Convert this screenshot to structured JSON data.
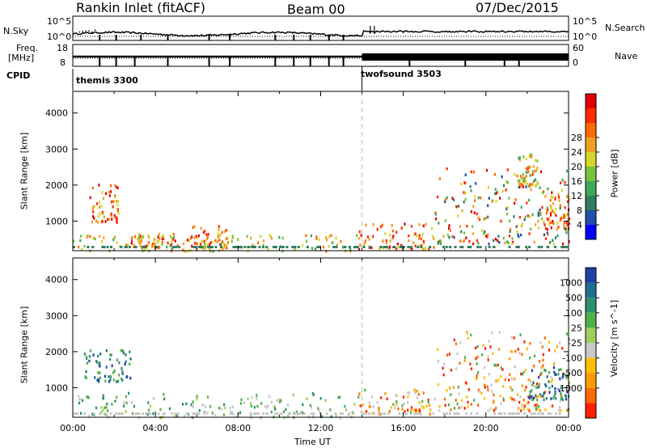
{
  "header": {
    "station": "Rankin Inlet (fitACF)",
    "beam": "Beam 00",
    "date": "07/Dec/2015"
  },
  "top_panels": {
    "nsky_label": "N.Sky",
    "nsky_ticks": [
      "10^5",
      "10^0"
    ],
    "nsearch_label": "N.Search",
    "nsearch_ticks": [
      "10^5",
      "10^0"
    ],
    "freq_label": "Freq.",
    "freq_unit": "[MHz]",
    "freq_ticks": [
      "18",
      "8"
    ],
    "nave_label": "Nave",
    "nave_ticks": [
      "60",
      "0"
    ],
    "cpid_label": "CPID",
    "cpid_entries": [
      {
        "name": "themis 3300",
        "start": "00:00"
      },
      {
        "name": "twofsound 3503",
        "start": "14:00"
      }
    ]
  },
  "chart_data": [
    {
      "type": "heatmap",
      "name": "power",
      "ylabel": "Slant Range [km]",
      "xlabel": "",
      "ylim": [
        180,
        4600
      ],
      "yticks": [
        "1000",
        "2000",
        "3000",
        "4000"
      ],
      "xlim_hours": [
        0,
        24
      ],
      "colorbar_label": "Power [dB]",
      "colorbar_ticks": [
        "4",
        "8",
        "12",
        "16",
        "20",
        "24",
        "28"
      ],
      "colorbar_colors": [
        "#0000ff",
        "#1f4fa8",
        "#2e7d5e",
        "#3fa75a",
        "#77c23e",
        "#d4d62a",
        "#f0a020",
        "#ff6a00",
        "#ff2a00",
        "#e00000"
      ],
      "regions": [
        {
          "t": [
            0.8,
            2.2
          ],
          "r": [
            1000,
            2100
          ],
          "level": "high"
        },
        {
          "t": [
            2.8,
            5.0
          ],
          "r": [
            300,
            700
          ],
          "level": "high"
        },
        {
          "t": [
            5.5,
            7.5
          ],
          "r": [
            300,
            900
          ],
          "level": "high"
        },
        {
          "t": [
            0.0,
            13.8
          ],
          "r": [
            200,
            650
          ],
          "level": "mid"
        },
        {
          "t": [
            13.8,
            17.5
          ],
          "r": [
            250,
            1000
          ],
          "level": "high"
        },
        {
          "t": [
            17.5,
            24.0
          ],
          "r": [
            400,
            2500
          ],
          "level": "mixed"
        },
        {
          "t": [
            21.5,
            22.5
          ],
          "r": [
            2000,
            2900
          ],
          "level": "mid"
        },
        {
          "t": [
            22.8,
            24.0
          ],
          "r": [
            800,
            1900
          ],
          "level": "high"
        }
      ]
    },
    {
      "type": "heatmap",
      "name": "velocity",
      "ylabel": "Slant Range [km]",
      "xlabel": "Time UT",
      "ylim": [
        180,
        4600
      ],
      "yticks": [
        "1000",
        "2000",
        "3000",
        "4000"
      ],
      "xlim_hours": [
        0,
        24
      ],
      "xticks": [
        "00:00",
        "04:00",
        "08:00",
        "12:00",
        "16:00",
        "20:00",
        "00:00"
      ],
      "colorbar_label": "Velocity [m s^-1]",
      "colorbar_ticks": [
        "1000",
        "500",
        "100",
        "25",
        "-25",
        "-100",
        "-500",
        "-1000"
      ],
      "colorbar_colors": [
        "#1f3fa8",
        "#1f6f8f",
        "#2e8f6e",
        "#4fb04a",
        "#9fd05a",
        "#c8c8c8",
        "#ffc000",
        "#ff9a00",
        "#ff6a00",
        "#ff2000"
      ],
      "regions": [
        {
          "t": [
            0.0,
            13.8
          ],
          "r": [
            200,
            900
          ],
          "level": "green"
        },
        {
          "t": [
            0.5,
            2.8
          ],
          "r": [
            1200,
            2100
          ],
          "level": "blue"
        },
        {
          "t": [
            13.8,
            17.5
          ],
          "r": [
            300,
            1000
          ],
          "level": "orange"
        },
        {
          "t": [
            17.5,
            24.0
          ],
          "r": [
            400,
            2600
          ],
          "level": "orange"
        },
        {
          "t": [
            22.0,
            24.0
          ],
          "r": [
            700,
            1600
          ],
          "level": "blue"
        }
      ]
    }
  ]
}
